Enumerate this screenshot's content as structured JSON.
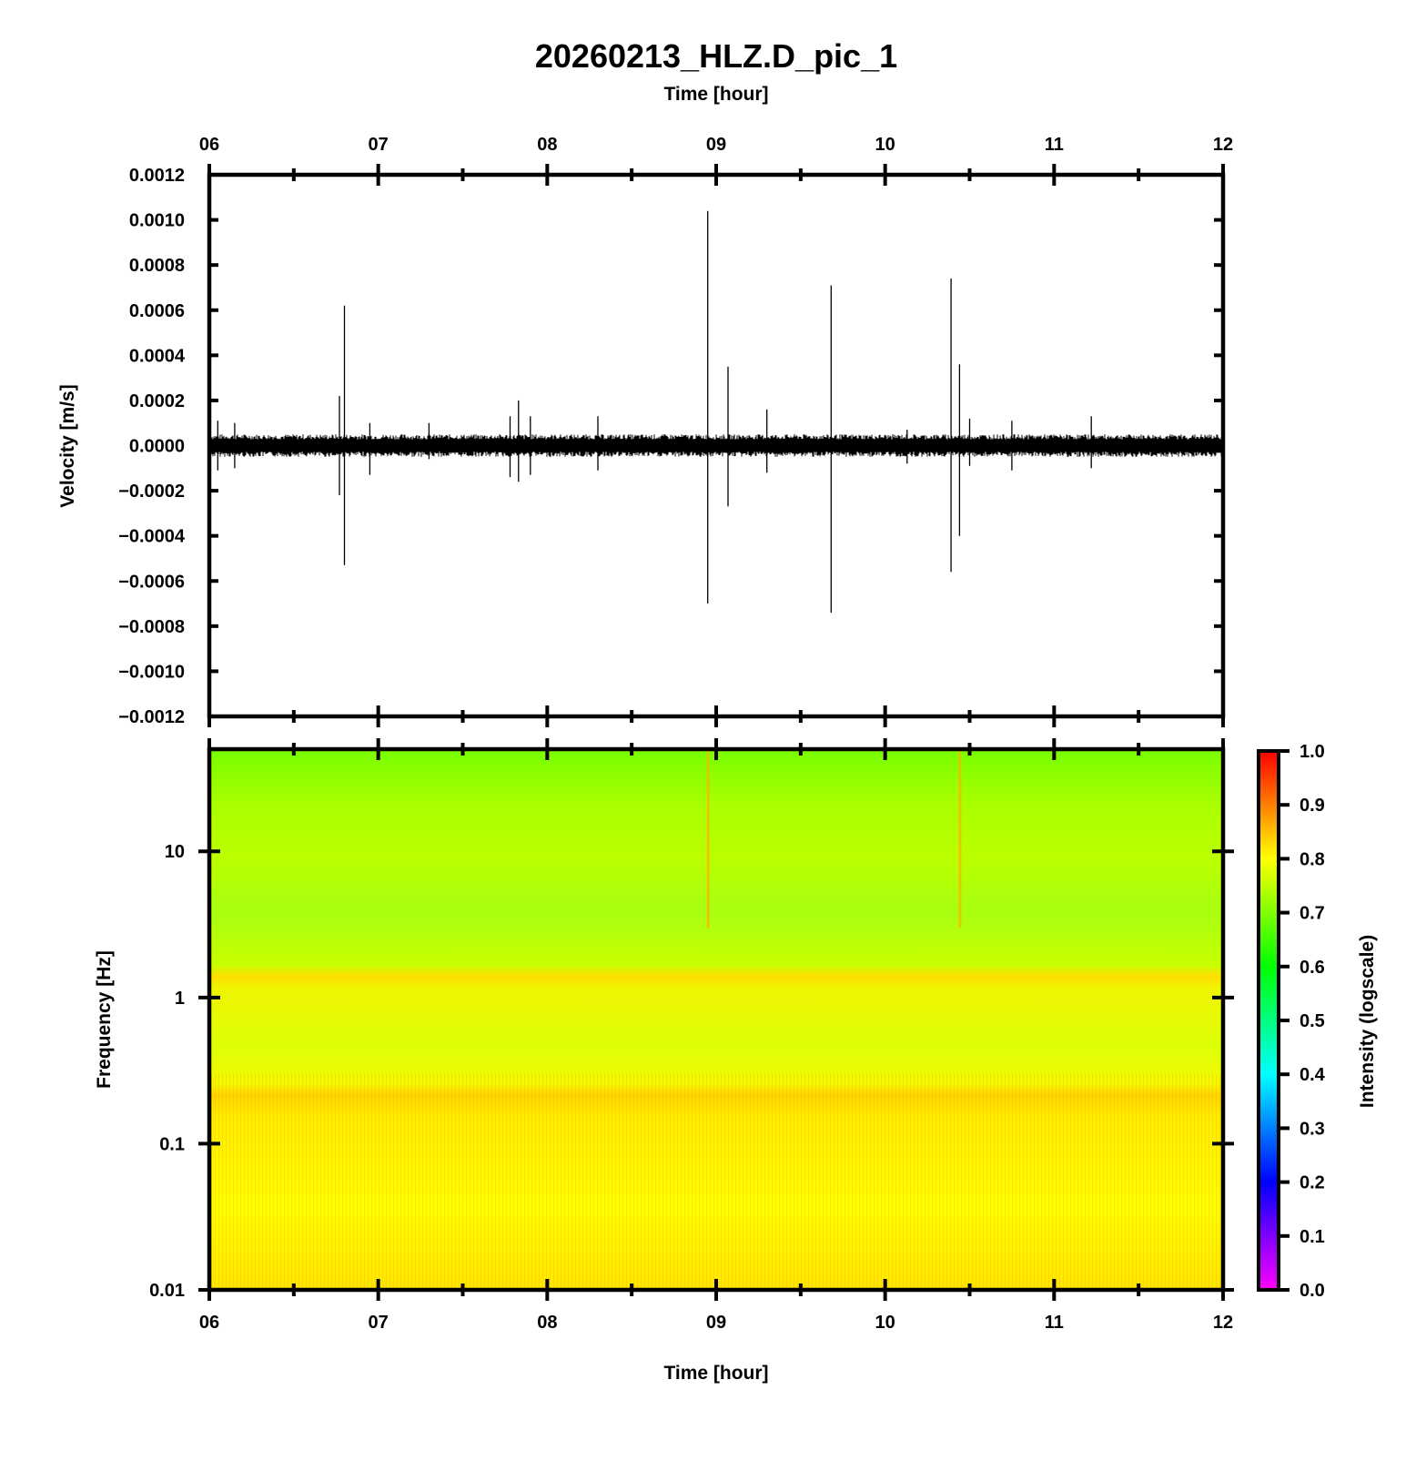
{
  "chart_data": [
    {
      "type": "line",
      "title": "20260213_HLZ.D_pic_1",
      "top_axis_label": "Time [hour]",
      "ylabel": "Velocity [m/s]",
      "x_tick_labels": [
        "06",
        "07",
        "08",
        "09",
        "10",
        "11",
        "12"
      ],
      "xlim_hours": [
        6,
        12
      ],
      "ylim": [
        -0.0012,
        0.0012
      ],
      "y_tick_labels": [
        "0.0012",
        "0.0010",
        "0.0008",
        "0.0006",
        "0.0004",
        "0.0002",
        "0.0000",
        "−0.0002",
        "−0.0004",
        "−0.0006",
        "−0.0008",
        "−0.0010",
        "−0.0012"
      ],
      "y_tick_values": [
        0.0012,
        0.001,
        0.0008,
        0.0006,
        0.0004,
        0.0002,
        0,
        -0.0002,
        -0.0004,
        -0.0006,
        -0.0008,
        -0.001,
        -0.0012
      ],
      "background_noise_amplitude": 5e-05,
      "spikes": [
        {
          "t": 6.05,
          "max": 0.00011,
          "min": -0.00011
        },
        {
          "t": 6.15,
          "max": 0.0001,
          "min": -0.0001
        },
        {
          "t": 6.77,
          "max": 0.00022,
          "min": -0.00022
        },
        {
          "t": 6.8,
          "max": 0.00062,
          "min": -0.00053
        },
        {
          "t": 6.95,
          "max": 0.0001,
          "min": -0.00013
        },
        {
          "t": 7.3,
          "max": 0.0001,
          "min": -6e-05
        },
        {
          "t": 7.78,
          "max": 0.00013,
          "min": -0.00014
        },
        {
          "t": 7.83,
          "max": 0.0002,
          "min": -0.00016
        },
        {
          "t": 7.9,
          "max": 0.00013,
          "min": -0.00013
        },
        {
          "t": 8.3,
          "max": 0.00013,
          "min": -0.00011
        },
        {
          "t": 8.95,
          "max": 0.00104,
          "min": -0.0007
        },
        {
          "t": 9.07,
          "max": 0.00035,
          "min": -0.00027
        },
        {
          "t": 9.3,
          "max": 0.00016,
          "min": -0.00012
        },
        {
          "t": 9.68,
          "max": 0.00071,
          "min": -0.00074
        },
        {
          "t": 10.13,
          "max": 7e-05,
          "min": -8e-05
        },
        {
          "t": 10.39,
          "max": 0.00074,
          "min": -0.00056
        },
        {
          "t": 10.44,
          "max": 0.00036,
          "min": -0.0004
        },
        {
          "t": 10.5,
          "max": 0.00012,
          "min": -9e-05
        },
        {
          "t": 10.75,
          "max": 0.00011,
          "min": -0.00011
        },
        {
          "t": 11.22,
          "max": 0.00013,
          "min": -0.0001
        }
      ]
    },
    {
      "type": "heatmap",
      "xlabel": "Time [hour]",
      "ylabel": "Frequency [Hz]",
      "x_tick_labels": [
        "06",
        "07",
        "08",
        "09",
        "10",
        "11",
        "12"
      ],
      "xlim_hours": [
        6,
        12
      ],
      "y_scale": "log",
      "ylim_hz": [
        0.01,
        50
      ],
      "y_tick_labels": [
        "10",
        "1",
        "0.1",
        "0.01"
      ],
      "y_tick_values": [
        10,
        1,
        0.1,
        0.01
      ],
      "colorbar_label": "Intensity (logscale)",
      "colorbar_tick_labels": [
        "1.0",
        "0.9",
        "0.8",
        "0.7",
        "0.6",
        "0.5",
        "0.4",
        "0.3",
        "0.2",
        "0.1",
        "0.0"
      ],
      "colorbar_tick_values": [
        1.0,
        0.9,
        0.8,
        0.7,
        0.6,
        0.5,
        0.4,
        0.3,
        0.2,
        0.1,
        0.0
      ],
      "colorbar_colors": [
        "#ff00ff",
        "#7f00ff",
        "#0000ff",
        "#007fff",
        "#00ffff",
        "#00ff7f",
        "#00ff00",
        "#7fff00",
        "#ffff00",
        "#ff7f00",
        "#ff0000"
      ],
      "intensity_by_frequency": [
        {
          "f_low": 0.01,
          "f_high": 0.04,
          "intensity": 0.81
        },
        {
          "f_low": 0.04,
          "f_high": 0.18,
          "intensity": 0.79
        },
        {
          "f_low": 0.18,
          "f_high": 0.25,
          "intensity": 0.82
        },
        {
          "f_low": 0.25,
          "f_high": 1.4,
          "intensity": 0.77
        },
        {
          "f_low": 1.4,
          "f_high": 1.6,
          "intensity": 0.8
        },
        {
          "f_low": 1.6,
          "f_high": 5,
          "intensity": 0.72
        },
        {
          "f_low": 5,
          "f_high": 20,
          "intensity": 0.7
        },
        {
          "f_low": 20,
          "f_high": 50,
          "intensity": 0.65
        }
      ],
      "transient_lines_hours": [
        8.95,
        10.44
      ]
    }
  ]
}
